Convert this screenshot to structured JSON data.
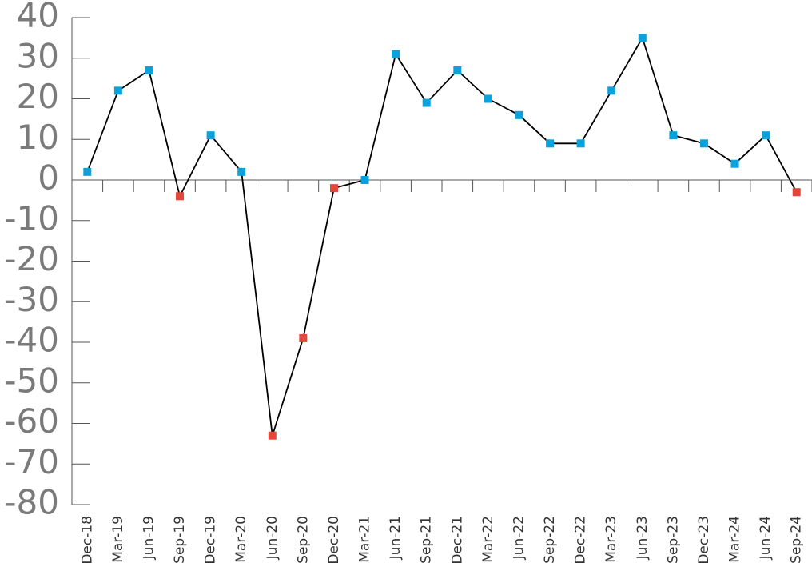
{
  "chart_data": {
    "type": "line",
    "categories": [
      "Dec-18",
      "Mar-19",
      "Jun-19",
      "Sep-19",
      "Dec-19",
      "Mar-20",
      "Jun-20",
      "Sep-20",
      "Dec-20",
      "Mar-21",
      "Jun-21",
      "Sep-21",
      "Dec-21",
      "Mar-22",
      "Jun-22",
      "Sep-22",
      "Dec-22",
      "Mar-23",
      "Jun-23",
      "Sep-23",
      "Dec-23",
      "Mar-24",
      "Jun-24",
      "Sep-24"
    ],
    "values": [
      2,
      22,
      27,
      -4,
      11,
      2,
      -63,
      -39,
      -2,
      0,
      31,
      19,
      27,
      20,
      16,
      9,
      9,
      22,
      35,
      11,
      9,
      4,
      11,
      -3
    ],
    "color": "#000000",
    "marker_colors": {
      "positive": "#0aa2dc",
      "negative": "#e2483a"
    },
    "ylim": [
      -80,
      40
    ],
    "yticks": [
      -80,
      -70,
      -60,
      -50,
      -40,
      -30,
      -20,
      -10,
      0,
      10,
      20,
      30,
      40
    ]
  }
}
